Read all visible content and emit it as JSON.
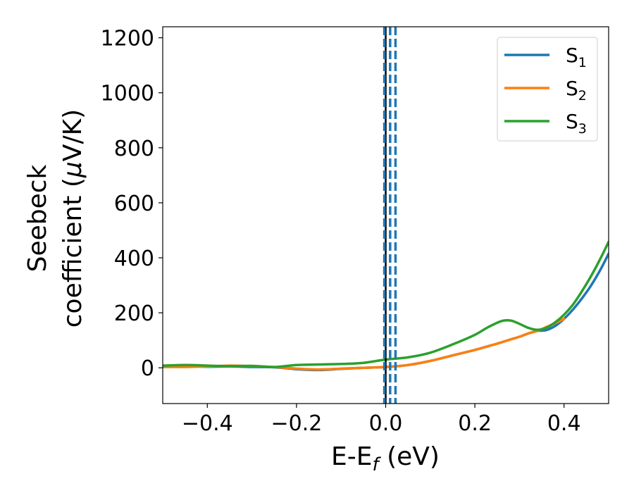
{
  "chart_data": {
    "type": "line",
    "xlabel_main": "E-E",
    "xlabel_sub": "f",
    "xlabel_unit": " (eV)",
    "ylabel_line1": "Seebeck",
    "ylabel_line2_a": "coefficient  (",
    "ylabel_mu": "μ",
    "ylabel_line2_b": "V/K)",
    "xlim": [
      -0.5,
      0.5
    ],
    "ylim": [
      -130,
      1240
    ],
    "xticks": [
      -0.4,
      -0.2,
      0.0,
      0.2,
      0.4
    ],
    "xtick_labels": [
      "−0.4",
      "−0.2",
      "0.0",
      "0.2",
      "0.4"
    ],
    "yticks": [
      0,
      200,
      400,
      600,
      800,
      1000,
      1200
    ],
    "ytick_labels": [
      "0",
      "200",
      "400",
      "600",
      "800",
      "1000",
      "1200"
    ],
    "grid": false,
    "legend_position": "top-right",
    "vertical_lines": [
      {
        "x": 0.0,
        "color": "#000000",
        "style": "solid"
      },
      {
        "x": -0.003,
        "color": "#1f77b4",
        "style": "dashed"
      },
      {
        "x": 0.01,
        "color": "#1f77b4",
        "style": "dashed"
      },
      {
        "x": 0.022,
        "color": "#1f77b4",
        "style": "dashed"
      }
    ],
    "series": [
      {
        "name_base": "S",
        "name_sub": "1",
        "color": "#1f77b4",
        "x": [
          -0.5,
          -0.45,
          -0.4,
          -0.35,
          -0.3,
          -0.25,
          -0.2,
          -0.15,
          -0.1,
          -0.05,
          0.0,
          0.05,
          0.1,
          0.15,
          0.2,
          0.25,
          0.28,
          0.3,
          0.32,
          0.34,
          0.36,
          0.38,
          0.4,
          0.42,
          0.44,
          0.46,
          0.48,
          0.5
        ],
        "y": [
          8,
          6,
          4,
          5,
          3,
          2,
          -5,
          -8,
          -4,
          0,
          3,
          10,
          25,
          45,
          65,
          88,
          103,
          113,
          125,
          134,
          137,
          152,
          178,
          212,
          252,
          298,
          352,
          415
        ]
      },
      {
        "name_base": "S",
        "name_sub": "2",
        "color": "#ff7f0e",
        "x": [
          -0.5,
          -0.45,
          -0.4,
          -0.35,
          -0.3,
          -0.25,
          -0.2,
          -0.15,
          -0.1,
          -0.05,
          0.0,
          0.05,
          0.1,
          0.15,
          0.2,
          0.25,
          0.28,
          0.3,
          0.32,
          0.34,
          0.36,
          0.38,
          0.4
        ],
        "y": [
          3,
          3,
          5,
          8,
          6,
          3,
          -3,
          -6,
          -3,
          0,
          3,
          10,
          25,
          45,
          65,
          88,
          103,
          113,
          125,
          134,
          148,
          162,
          178
        ]
      },
      {
        "name_base": "S",
        "name_sub": "3",
        "color": "#2ca02c",
        "x": [
          -0.5,
          -0.45,
          -0.4,
          -0.35,
          -0.3,
          -0.25,
          -0.2,
          -0.15,
          -0.1,
          -0.05,
          0.0,
          0.05,
          0.1,
          0.15,
          0.2,
          0.23,
          0.26,
          0.28,
          0.3,
          0.32,
          0.34,
          0.36,
          0.38,
          0.4,
          0.42,
          0.44,
          0.46,
          0.48,
          0.5
        ],
        "y": [
          8,
          10,
          8,
          6,
          7,
          3,
          10,
          12,
          14,
          18,
          30,
          38,
          55,
          85,
          120,
          148,
          170,
          172,
          160,
          145,
          138,
          145,
          165,
          193,
          230,
          278,
          332,
          392,
          458
        ]
      }
    ]
  }
}
